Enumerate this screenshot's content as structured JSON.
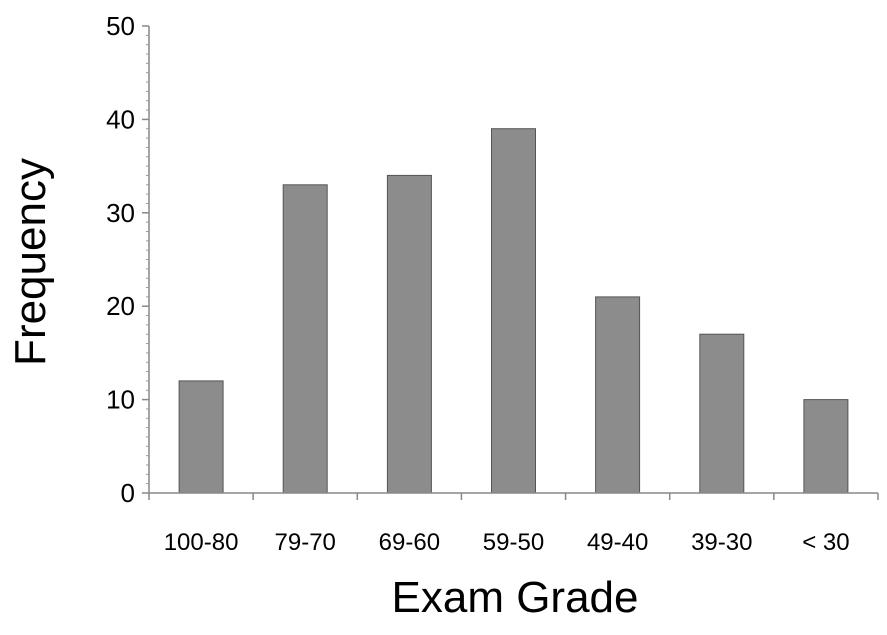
{
  "chart_data": {
    "type": "bar",
    "title": "",
    "xlabel": "Exam Grade",
    "ylabel": "Frequency",
    "categories": [
      "100-80",
      "79-70",
      "69-60",
      "59-50",
      "49-40",
      "39-30",
      "< 30"
    ],
    "values": [
      12,
      33,
      34,
      39,
      21,
      17,
      10
    ],
    "ylim": [
      0,
      50
    ],
    "yticks": [
      0,
      10,
      20,
      30,
      40,
      50
    ],
    "grid": false,
    "bar_color": "#8c8c8c"
  }
}
